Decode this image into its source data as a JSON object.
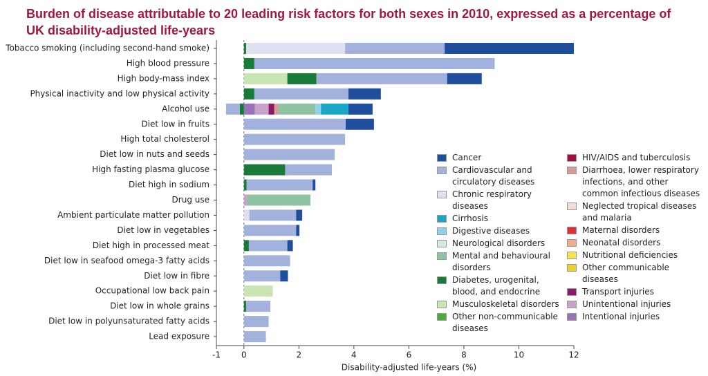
{
  "chart_data": {
    "type": "stacked-barh",
    "title": "Burden of disease attributable to 20 leading risk factors for both sexes in 2010, expressed as a percentage of UK disability-adjusted life-years",
    "xlabel": "Disability-adjusted life-years (%)",
    "xlim": [
      -1,
      12
    ],
    "xticks": [
      -1,
      0,
      2,
      4,
      6,
      8,
      10,
      12
    ],
    "categories": [
      "Tobacco smoking (including second-hand smoke)",
      "High blood pressure",
      "High body-mass index",
      "Physical inactivity and low physical activity",
      "Alcohol use",
      "Diet low in fruits",
      "High total cholesterol",
      "Diet low in nuts and seeds",
      "High fasting plasma glucose",
      "Diet high in sodium",
      "Drug use",
      "Ambient particulate matter pollution",
      "Diet low in vegetables",
      "Diet high in processed meat",
      "Diet low in seafood omega-3 fatty acids",
      "Diet low in fibre",
      "Occupational low back pain",
      "Diet low in whole grains",
      "Diet low in polyunsaturated fatty acids",
      "Lead exposure"
    ],
    "series": [
      {
        "name": "Cancer",
        "color": "#1f4e9c",
        "values": [
          4.7,
          null,
          1.26,
          1.18,
          0.88,
          1.03,
          null,
          null,
          null,
          0.1,
          null,
          0.22,
          0.12,
          0.2,
          null,
          0.28,
          null,
          null,
          null,
          null
        ]
      },
      {
        "name": "Cardiovascular and circulatory diseases",
        "color": "#a3b2dd",
        "values": [
          3.62,
          8.74,
          4.75,
          3.42,
          -0.5,
          3.7,
          3.68,
          3.3,
          1.7,
          2.4,
          null,
          1.7,
          1.9,
          1.4,
          1.68,
          1.32,
          null,
          0.88,
          0.9,
          0.8
        ]
      },
      {
        "name": "Chronic respiratory diseases",
        "color": "#dfe0f2",
        "values": [
          3.6,
          null,
          null,
          null,
          null,
          null,
          null,
          null,
          null,
          null,
          null,
          0.2,
          null,
          null,
          null,
          null,
          null,
          null,
          null,
          null
        ]
      },
      {
        "name": "Cirrhosis",
        "color": "#1ba6c8",
        "values": [
          null,
          null,
          null,
          null,
          1.0,
          null,
          null,
          null,
          null,
          null,
          null,
          null,
          null,
          null,
          null,
          null,
          null,
          null,
          null,
          null
        ]
      },
      {
        "name": "Digestive diseases",
        "color": "#93d2e6",
        "values": [
          null,
          null,
          null,
          null,
          0.2,
          null,
          null,
          null,
          null,
          null,
          null,
          null,
          null,
          null,
          null,
          null,
          null,
          null,
          null,
          null
        ]
      },
      {
        "name": "Neurological disorders",
        "color": "#d5e9e1",
        "values": [
          null,
          null,
          null,
          null,
          null,
          null,
          null,
          null,
          null,
          null,
          null,
          null,
          null,
          null,
          null,
          null,
          null,
          null,
          null,
          null
        ]
      },
      {
        "name": "Mental and behavioural disorders",
        "color": "#8fc2a2",
        "values": [
          null,
          null,
          null,
          null,
          1.35,
          null,
          null,
          null,
          null,
          null,
          2.3,
          null,
          null,
          null,
          null,
          null,
          null,
          null,
          null,
          null
        ]
      },
      {
        "name": "Diabetes, urogenital, blood, and endocrine",
        "color": "#1a7a3a",
        "values": [
          0.08,
          0.38,
          1.06,
          0.38,
          -0.15,
          null,
          null,
          null,
          1.5,
          0.1,
          null,
          null,
          null,
          0.18,
          null,
          null,
          null,
          0.08,
          null,
          null
        ]
      },
      {
        "name": "Musculoskeletal disorders",
        "color": "#c9e6b2",
        "values": [
          null,
          null,
          1.58,
          null,
          null,
          null,
          null,
          null,
          null,
          null,
          null,
          null,
          null,
          null,
          null,
          null,
          1.05,
          null,
          null,
          null
        ]
      },
      {
        "name": "Other non-communicable diseases",
        "color": "#4caa3a",
        "values": [
          null,
          null,
          null,
          null,
          null,
          null,
          null,
          null,
          null,
          null,
          null,
          null,
          null,
          null,
          null,
          null,
          null,
          null,
          null,
          null
        ]
      },
      {
        "name": "HIV/AIDS and tuberculosis",
        "color": "#a0103a",
        "values": [
          null,
          null,
          null,
          null,
          null,
          null,
          null,
          null,
          null,
          null,
          null,
          null,
          null,
          null,
          null,
          null,
          null,
          null,
          null,
          null
        ]
      },
      {
        "name": "Diarrhoea, lower respiratory infections, and other common infectious diseases",
        "color": "#d89a98",
        "values": [
          null,
          null,
          null,
          null,
          0.15,
          null,
          null,
          null,
          null,
          null,
          null,
          null,
          null,
          null,
          null,
          null,
          null,
          null,
          null,
          null
        ]
      },
      {
        "name": "Neglected tropical diseases and malaria",
        "color": "#f2dcd8",
        "values": [
          null,
          null,
          null,
          null,
          null,
          null,
          null,
          null,
          null,
          null,
          null,
          null,
          null,
          null,
          null,
          null,
          null,
          null,
          null,
          null
        ]
      },
      {
        "name": "Maternal disorders",
        "color": "#e03030",
        "values": [
          null,
          null,
          null,
          null,
          null,
          null,
          null,
          null,
          null,
          null,
          null,
          null,
          null,
          null,
          null,
          null,
          null,
          null,
          null,
          null
        ]
      },
      {
        "name": "Neonatal disorders",
        "color": "#f2aa90",
        "values": [
          null,
          null,
          null,
          null,
          null,
          null,
          null,
          null,
          null,
          null,
          null,
          null,
          null,
          null,
          null,
          null,
          null,
          null,
          null,
          null
        ]
      },
      {
        "name": "Nutritional deficiencies",
        "color": "#f8e450",
        "values": [
          null,
          null,
          null,
          null,
          null,
          null,
          null,
          null,
          null,
          null,
          null,
          null,
          null,
          null,
          null,
          null,
          null,
          null,
          null,
          null
        ]
      },
      {
        "name": "Other communicable diseases",
        "color": "#f0d030",
        "values": [
          null,
          null,
          null,
          null,
          null,
          null,
          null,
          null,
          null,
          null,
          null,
          null,
          null,
          null,
          null,
          null,
          null,
          null,
          null,
          null
        ]
      },
      {
        "name": "Transport injuries",
        "color": "#8a1a6a",
        "values": [
          null,
          null,
          null,
          null,
          0.2,
          null,
          null,
          null,
          null,
          null,
          null,
          null,
          null,
          null,
          null,
          null,
          null,
          null,
          null,
          null
        ]
      },
      {
        "name": "Unintentional injuries",
        "color": "#c9a2c9",
        "values": [
          null,
          null,
          null,
          null,
          0.5,
          null,
          null,
          null,
          null,
          null,
          0.12,
          null,
          null,
          null,
          null,
          null,
          null,
          null,
          null,
          null
        ]
      },
      {
        "name": "Intentional injuries",
        "color": "#9a72b8",
        "values": [
          null,
          null,
          null,
          null,
          0.4,
          null,
          null,
          null,
          null,
          null,
          null,
          null,
          null,
          null,
          null,
          null,
          null,
          null,
          null,
          null
        ]
      }
    ]
  }
}
